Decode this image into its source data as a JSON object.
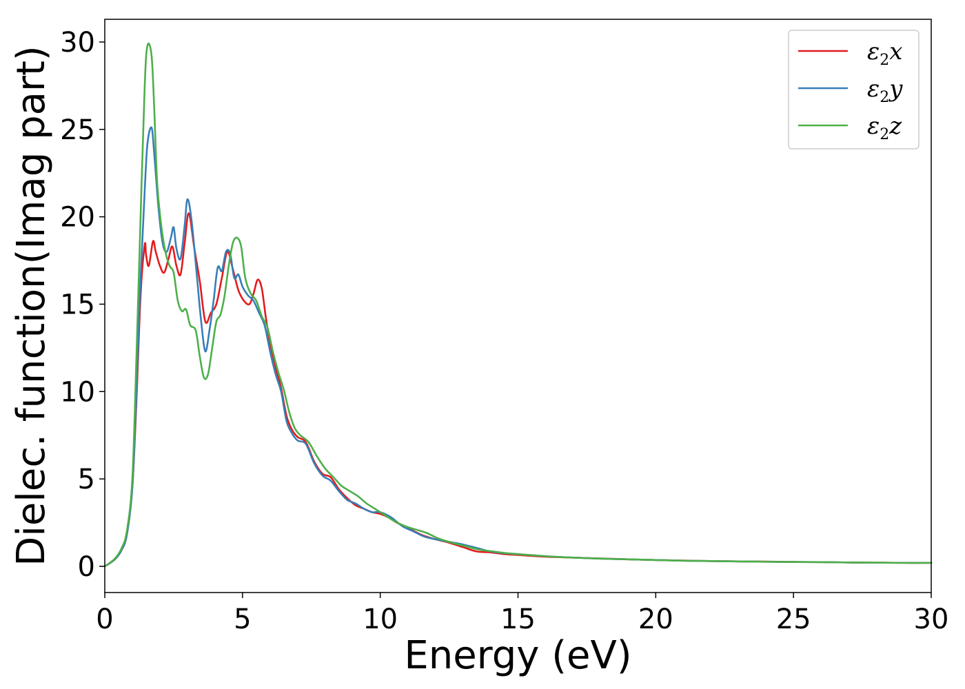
{
  "chart_data": {
    "type": "line",
    "xlabel": "Energy (eV)",
    "ylabel": "Dielec. function(Imag part)",
    "xlim": [
      0,
      30
    ],
    "ylim": [
      -1.5,
      31.3
    ],
    "xticks": [
      0,
      5,
      10,
      15,
      20,
      25,
      30
    ],
    "yticks": [
      0,
      5,
      10,
      15,
      20,
      25,
      30
    ],
    "grid": false,
    "legend_position": "top-right",
    "series": [
      {
        "name": "ε₂x",
        "label_base": "ε",
        "label_sub": "2",
        "label_axis": "x",
        "color": "#e41a1c",
        "x": [
          0,
          0.2,
          0.4,
          0.6,
          0.8,
          1.0,
          1.15,
          1.3,
          1.45,
          1.5,
          1.6,
          1.75,
          1.85,
          2.0,
          2.15,
          2.3,
          2.45,
          2.6,
          2.75,
          2.9,
          3.05,
          3.25,
          3.45,
          3.65,
          3.85,
          4.05,
          4.25,
          4.45,
          4.65,
          4.85,
          5.05,
          5.25,
          5.4,
          5.55,
          5.7,
          5.85,
          6.0,
          6.2,
          6.4,
          6.6,
          6.8,
          7.0,
          7.3,
          7.6,
          7.9,
          8.2,
          8.5,
          8.8,
          9.1,
          9.4,
          9.7,
          10.0,
          10.3,
          10.6,
          11.0,
          11.5,
          12.0,
          12.5,
          13.0,
          13.5,
          14.0,
          14.5,
          15.0,
          16.0,
          17.0,
          18.0,
          19.0,
          20.0,
          21.0,
          22.0,
          23.0,
          24.0,
          25.0,
          26.0,
          27.0,
          28.0,
          29.0,
          30.0
        ],
        "y": [
          0,
          0.2,
          0.45,
          0.9,
          1.8,
          4.5,
          9.5,
          15.5,
          18.4,
          17.8,
          17.2,
          18.6,
          18.0,
          17.2,
          16.8,
          17.5,
          18.3,
          17.2,
          16.7,
          18.5,
          20.2,
          18.2,
          16.3,
          14.0,
          14.5,
          15.0,
          16.5,
          18.0,
          17.0,
          15.8,
          15.2,
          15.0,
          15.6,
          16.4,
          15.9,
          14.2,
          12.8,
          11.4,
          10.2,
          8.6,
          7.8,
          7.4,
          7.1,
          6.0,
          5.3,
          5.1,
          4.4,
          3.9,
          3.5,
          3.3,
          3.1,
          3.0,
          2.8,
          2.5,
          2.2,
          1.8,
          1.55,
          1.35,
          1.1,
          0.85,
          0.8,
          0.7,
          0.65,
          0.55,
          0.5,
          0.45,
          0.4,
          0.36,
          0.33,
          0.3,
          0.28,
          0.27,
          0.25,
          0.24,
          0.22,
          0.21,
          0.2,
          0.2
        ]
      },
      {
        "name": "ε₂y",
        "label_base": "ε",
        "label_sub": "2",
        "label_axis": "y",
        "color": "#377eb8",
        "x": [
          0,
          0.2,
          0.4,
          0.6,
          0.8,
          1.0,
          1.15,
          1.3,
          1.45,
          1.55,
          1.7,
          1.8,
          1.95,
          2.1,
          2.25,
          2.4,
          2.5,
          2.6,
          2.75,
          2.9,
          3.0,
          3.15,
          3.35,
          3.5,
          3.65,
          3.8,
          3.95,
          4.1,
          4.25,
          4.4,
          4.55,
          4.7,
          4.85,
          5.0,
          5.2,
          5.4,
          5.6,
          5.8,
          6.0,
          6.2,
          6.4,
          6.6,
          6.8,
          7.0,
          7.3,
          7.6,
          7.9,
          8.2,
          8.5,
          8.8,
          9.1,
          9.4,
          9.7,
          10.0,
          10.4,
          10.8,
          11.2,
          11.6,
          12.0,
          12.5,
          13.0,
          13.5,
          14.0,
          14.5,
          15.0,
          16.0,
          17.0,
          18.0,
          19.0,
          20.0,
          21.0,
          22.0,
          23.0,
          24.0,
          25.0,
          26.0,
          27.0,
          28.0,
          29.0,
          30.0
        ],
        "y": [
          0,
          0.2,
          0.45,
          0.9,
          1.8,
          4.5,
          10.0,
          16.5,
          21.5,
          24.2,
          25.1,
          23.5,
          20.5,
          18.5,
          18.0,
          18.8,
          19.4,
          18.2,
          17.6,
          19.5,
          21.0,
          19.8,
          16.5,
          14.0,
          12.3,
          13.5,
          15.2,
          17.1,
          16.9,
          18.0,
          17.9,
          16.5,
          16.7,
          16.0,
          15.5,
          15.2,
          14.5,
          13.8,
          12.3,
          11.0,
          10.0,
          8.3,
          7.6,
          7.2,
          7.0,
          5.9,
          5.2,
          4.9,
          4.3,
          3.8,
          3.6,
          3.3,
          3.1,
          3.1,
          2.8,
          2.3,
          2.0,
          1.7,
          1.55,
          1.4,
          1.25,
          1.05,
          0.85,
          0.75,
          0.7,
          0.58,
          0.5,
          0.44,
          0.4,
          0.36,
          0.32,
          0.3,
          0.28,
          0.26,
          0.25,
          0.24,
          0.22,
          0.21,
          0.2,
          0.2
        ]
      },
      {
        "name": "ε₂z",
        "label_base": "ε",
        "label_sub": "2",
        "label_axis": "z",
        "color": "#4daf4a",
        "x": [
          0,
          0.2,
          0.4,
          0.6,
          0.8,
          1.0,
          1.15,
          1.3,
          1.45,
          1.55,
          1.7,
          1.8,
          1.9,
          2.05,
          2.2,
          2.35,
          2.5,
          2.65,
          2.8,
          2.95,
          3.1,
          3.3,
          3.45,
          3.6,
          3.75,
          3.9,
          4.05,
          4.2,
          4.35,
          4.5,
          4.65,
          4.8,
          4.95,
          5.1,
          5.3,
          5.5,
          5.7,
          5.9,
          6.1,
          6.3,
          6.5,
          6.7,
          6.9,
          7.1,
          7.4,
          7.7,
          8.0,
          8.3,
          8.6,
          8.9,
          9.2,
          9.5,
          9.8,
          10.1,
          10.5,
          10.9,
          11.3,
          11.7,
          12.1,
          12.6,
          13.1,
          13.6,
          14.1,
          14.6,
          15.1,
          16.0,
          17.0,
          18.0,
          19.0,
          20.0,
          21.0,
          22.0,
          23.0,
          24.0,
          25.0,
          26.0,
          27.0,
          28.0,
          29.0,
          30.0
        ],
        "y": [
          0,
          0.22,
          0.5,
          1.0,
          2.0,
          5.0,
          12.0,
          20.0,
          27.5,
          29.8,
          29.2,
          26.0,
          22.0,
          19.5,
          18.0,
          17.2,
          16.8,
          15.2,
          14.6,
          14.7,
          13.8,
          13.5,
          12.0,
          10.8,
          11.0,
          12.5,
          14.0,
          14.4,
          15.5,
          17.2,
          18.5,
          18.8,
          18.3,
          16.5,
          15.6,
          15.2,
          14.3,
          13.7,
          12.3,
          11.1,
          10.1,
          8.8,
          7.9,
          7.5,
          7.1,
          6.3,
          5.6,
          5.1,
          4.6,
          4.3,
          4.0,
          3.6,
          3.3,
          3.0,
          2.6,
          2.3,
          2.1,
          1.9,
          1.6,
          1.35,
          1.15,
          0.95,
          0.85,
          0.75,
          0.68,
          0.58,
          0.5,
          0.44,
          0.4,
          0.36,
          0.32,
          0.3,
          0.28,
          0.26,
          0.25,
          0.24,
          0.22,
          0.21,
          0.2,
          0.2
        ]
      }
    ]
  }
}
